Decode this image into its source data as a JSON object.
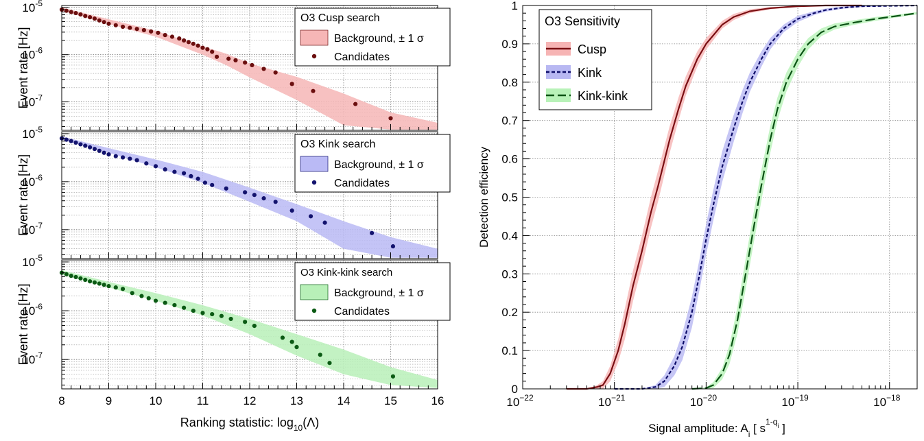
{
  "chart_data": [
    {
      "type": "scatter",
      "title": "O3 Cusp search",
      "xlabel": "",
      "ylabel": "Event rate [Hz]",
      "xlim": [
        8,
        16
      ],
      "ylim": [
        2.5e-08,
        1.1e-05
      ],
      "yscale": "log",
      "y_ticks": [
        "10",
        "10",
        "10"
      ],
      "y_tick_exponents": [
        "-5",
        "-6",
        "-7"
      ],
      "legend": {
        "placement": "top-right",
        "entries": [
          "Background, ± 1 σ",
          "Candidates"
        ]
      },
      "colors": {
        "points": "#6b0f0f",
        "band": "#f6b6b6"
      },
      "band": {
        "x": [
          8,
          9,
          10,
          11,
          11.5,
          12,
          13,
          14,
          15,
          16
        ],
        "low": [
          8.5e-06,
          4.5e-06,
          2.4e-06,
          1e-06,
          6e-07,
          3.3e-07,
          1.1e-07,
          3.2e-08,
          2.6e-08,
          2.6e-08
        ],
        "high": [
          1e-05,
          5.6e-06,
          3.2e-06,
          1.5e-06,
          1.05e-06,
          6.5e-07,
          3.4e-07,
          1.5e-07,
          6e-08,
          3.6e-08
        ]
      },
      "series": [
        {
          "name": "Candidates",
          "x": [
            8.0,
            8.1,
            8.2,
            8.3,
            8.4,
            8.5,
            8.6,
            8.7,
            8.8,
            8.9,
            9.0,
            9.15,
            9.3,
            9.45,
            9.6,
            9.75,
            9.9,
            10.05,
            10.2,
            10.35,
            10.5,
            10.6,
            10.7,
            10.8,
            10.9,
            11.0,
            11.1,
            11.2,
            11.3,
            11.55,
            11.7,
            11.9,
            12.05,
            12.3,
            12.55,
            12.9,
            13.35,
            14.25,
            15.0
          ],
          "y": [
            9e-06,
            8.5e-06,
            8e-06,
            7.6e-06,
            7.1e-06,
            6.6e-06,
            6.2e-06,
            5.8e-06,
            5.3e-06,
            4.9e-06,
            4.5e-06,
            4.2e-06,
            3.9e-06,
            3.7e-06,
            3.5e-06,
            3.3e-06,
            3.1e-06,
            2.9e-06,
            2.6e-06,
            2.4e-06,
            2.2e-06,
            2e-06,
            1.85e-06,
            1.7e-06,
            1.55e-06,
            1.4e-06,
            1.3e-06,
            1.15e-06,
            9e-07,
            8.2e-07,
            7.6e-07,
            6.8e-07,
            6e-07,
            5e-07,
            4.2e-07,
            2.4e-07,
            1.7e-07,
            9e-08,
            4.5e-08
          ]
        }
      ]
    },
    {
      "type": "scatter",
      "title": "O3 Kink search",
      "xlabel": "",
      "ylabel": "Event rate [Hz]",
      "xlim": [
        8,
        16
      ],
      "ylim": [
        2.5e-08,
        1.1e-05
      ],
      "yscale": "log",
      "y_ticks": [
        "10",
        "10",
        "10"
      ],
      "y_tick_exponents": [
        "-5",
        "-6",
        "-7"
      ],
      "legend": {
        "placement": "top-right",
        "entries": [
          "Background, ± 1 σ",
          "Candidates"
        ]
      },
      "colors": {
        "points": "#13136e",
        "band": "#babaf5"
      },
      "band": {
        "x": [
          8,
          9,
          10,
          11,
          12,
          13,
          14,
          15,
          16
        ],
        "low": [
          7.5e-06,
          4e-06,
          2e-06,
          9.5e-07,
          3.8e-07,
          1.5e-07,
          4e-08,
          2.6e-08,
          2.6e-08
        ],
        "high": [
          8.8e-06,
          5e-06,
          2.9e-06,
          1.6e-06,
          7.5e-07,
          3.4e-07,
          1.5e-07,
          7e-08,
          4e-08
        ]
      },
      "series": [
        {
          "name": "Candidates",
          "x": [
            8.0,
            8.1,
            8.2,
            8.3,
            8.4,
            8.5,
            8.6,
            8.7,
            8.8,
            8.9,
            9.0,
            9.15,
            9.3,
            9.45,
            9.6,
            9.8,
            10.0,
            10.2,
            10.4,
            10.6,
            10.75,
            10.9,
            11.05,
            11.2,
            11.5,
            11.9,
            12.1,
            12.3,
            12.55,
            12.9,
            13.3,
            13.6,
            14.6,
            15.05
          ],
          "y": [
            8e-06,
            7.5e-06,
            7e-06,
            6.5e-06,
            6e-06,
            5.6e-06,
            5.2e-06,
            4.8e-06,
            4.4e-06,
            4e-06,
            3.7e-06,
            3.4e-06,
            3.2e-06,
            3e-06,
            2.8e-06,
            2.4e-06,
            2.1e-06,
            1.8e-06,
            1.6e-06,
            1.5e-06,
            1.3e-06,
            1.15e-06,
            9.5e-07,
            8.5e-07,
            7.2e-07,
            6e-07,
            5.3e-07,
            4.5e-07,
            3.8e-07,
            2.5e-07,
            1.9e-07,
            1.4e-07,
            8.5e-08,
            4.5e-08
          ]
        }
      ]
    },
    {
      "type": "scatter",
      "title": "O3 Kink-kink search",
      "xlabel": "Ranking statistic: log",
      "xlabel_subscript": "10",
      "xlabel_suffix": "(Λ)",
      "ylabel": "Event rate [Hz]",
      "xlim": [
        8,
        16
      ],
      "ylim": [
        2.5e-08,
        1.1e-05
      ],
      "yscale": "log",
      "x_ticks": [
        "8",
        "9",
        "10",
        "11",
        "12",
        "13",
        "14",
        "15",
        "16"
      ],
      "y_ticks": [
        "10",
        "10",
        "10"
      ],
      "y_tick_exponents": [
        "-5",
        "-6",
        "-7"
      ],
      "legend": {
        "placement": "top-right",
        "entries": [
          "Background, ± 1 σ",
          "Candidates"
        ]
      },
      "colors": {
        "points": "#0b5a14",
        "band": "#b8f0b8"
      },
      "band": {
        "x": [
          8,
          9,
          10,
          11,
          12,
          13,
          14,
          15,
          16
        ],
        "low": [
          5.5e-06,
          3e-06,
          1.6e-06,
          8e-07,
          3.3e-07,
          1.2e-07,
          5e-08,
          3e-08,
          2.6e-08
        ],
        "high": [
          6.8e-06,
          3.9e-06,
          2.3e-06,
          1.3e-06,
          6.8e-07,
          3.3e-07,
          1.6e-07,
          7e-08,
          3.8e-08
        ]
      },
      "series": [
        {
          "name": "Candidates",
          "x": [
            8.0,
            8.1,
            8.2,
            8.3,
            8.4,
            8.5,
            8.6,
            8.7,
            8.8,
            8.9,
            9.0,
            9.15,
            9.3,
            9.5,
            9.7,
            9.85,
            10.0,
            10.2,
            10.4,
            10.6,
            10.8,
            11.0,
            11.2,
            11.4,
            11.6,
            11.9,
            12.1,
            12.7,
            12.9,
            13.0,
            13.5,
            13.7,
            15.05
          ],
          "y": [
            6e-06,
            5.6e-06,
            5.2e-06,
            4.9e-06,
            4.6e-06,
            4.3e-06,
            4e-06,
            3.8e-06,
            3.6e-06,
            3.4e-06,
            3.2e-06,
            3e-06,
            2.8e-06,
            2.3e-06,
            2e-06,
            1.8e-06,
            1.6e-06,
            1.45e-06,
            1.3e-06,
            1.15e-06,
            1e-06,
            9e-07,
            8.5e-07,
            7.8e-07,
            6.8e-07,
            5.9e-07,
            4.9e-07,
            2.8e-07,
            2.3e-07,
            1.8e-07,
            1.25e-07,
            8.5e-08,
            4.5e-08
          ]
        }
      ]
    },
    {
      "type": "line",
      "title": "",
      "xlabel": "Signal amplitude: A",
      "xlabel_subscript": "i",
      "xlabel_suffix": " [ s",
      "xlabel_superscript": "1-q",
      "xlabel_superscript_sub": "i",
      "xlabel_end": " ]",
      "ylabel": "Detection efficiency",
      "xscale": "log",
      "xlim": [
        1e-22,
        2e-18
      ],
      "ylim": [
        0,
        1
      ],
      "grid": true,
      "x_ticks": [
        "10",
        "10",
        "10",
        "10",
        "10"
      ],
      "x_tick_exponents": [
        "−22",
        "−21",
        "−20",
        "−19",
        "−18"
      ],
      "y_ticks": [
        "0",
        "0.1",
        "0.2",
        "0.3",
        "0.4",
        "0.5",
        "0.6",
        "0.7",
        "0.8",
        "0.9",
        "1"
      ],
      "legend": {
        "title": "O3 Sensitivity",
        "placement": "top-left"
      },
      "series": [
        {
          "name": "Cusp",
          "style": "solid",
          "color": "#7a0e12",
          "band_color": "#f6b4b4",
          "x": [
            3e-22,
            5e-22,
            6.5e-22,
            7.5e-22,
            9e-22,
            1.1e-21,
            1.3e-21,
            1.6e-21,
            2e-21,
            2.5e-21,
            3e-21,
            4e-21,
            5e-21,
            6e-21,
            8e-21,
            1e-20,
            1.5e-20,
            2e-20,
            3e-20,
            5e-20,
            1e-19,
            2e-19,
            5e-19
          ],
          "y": [
            0,
            0,
            0.005,
            0.01,
            0.04,
            0.1,
            0.17,
            0.27,
            0.36,
            0.46,
            0.53,
            0.65,
            0.73,
            0.79,
            0.86,
            0.9,
            0.95,
            0.97,
            0.985,
            0.993,
            0.998,
            1.0,
            1.0
          ],
          "band_halfwidth": [
            0,
            0,
            0.005,
            0.01,
            0.02,
            0.03,
            0.04,
            0.04,
            0.04,
            0.04,
            0.04,
            0.035,
            0.03,
            0.025,
            0.02,
            0.015,
            0.01,
            0.008,
            0.005,
            0.003,
            0.001,
            0,
            0
          ]
        },
        {
          "name": "Kink",
          "style": "dashed",
          "color": "#0c0c68",
          "band_color": "#b8b8f2",
          "x": [
            1e-21,
            2e-21,
            2.8e-21,
            3.5e-21,
            4.5e-21,
            5.5e-21,
            7e-21,
            8.5e-21,
            1e-20,
            1.2e-20,
            1.5e-20,
            2e-20,
            2.5e-20,
            3e-20,
            4e-20,
            5e-20,
            7e-20,
            1e-19,
            1.5e-19,
            2e-19,
            3e-19,
            5e-19,
            2e-18
          ],
          "y": [
            0,
            0,
            0.005,
            0.02,
            0.06,
            0.11,
            0.2,
            0.3,
            0.39,
            0.48,
            0.58,
            0.68,
            0.75,
            0.8,
            0.86,
            0.9,
            0.94,
            0.965,
            0.98,
            0.988,
            0.994,
            0.998,
            1.0
          ],
          "band_halfwidth": [
            0,
            0,
            0.005,
            0.015,
            0.025,
            0.035,
            0.04,
            0.04,
            0.04,
            0.04,
            0.04,
            0.035,
            0.03,
            0.025,
            0.02,
            0.015,
            0.01,
            0.008,
            0.005,
            0.004,
            0.003,
            0.002,
            0
          ]
        },
        {
          "name": "Kink-kink",
          "style": "long-dashed",
          "color": "#0a5214",
          "band_color": "#b8f2b8",
          "x": [
            7e-21,
            1e-20,
            1.2e-20,
            1.5e-20,
            1.8e-20,
            2.2e-20,
            2.7e-20,
            3.3e-20,
            4e-20,
            5e-20,
            6e-20,
            7.5e-20,
            1e-19,
            1.3e-19,
            1.8e-19,
            2.5e-19,
            4e-19,
            7e-19,
            1e-18,
            2e-18
          ],
          "y": [
            0,
            0.002,
            0.01,
            0.04,
            0.09,
            0.18,
            0.3,
            0.42,
            0.53,
            0.65,
            0.73,
            0.8,
            0.86,
            0.9,
            0.93,
            0.945,
            0.955,
            0.965,
            0.97,
            0.98
          ],
          "band_halfwidth": [
            0,
            0.002,
            0.008,
            0.015,
            0.025,
            0.035,
            0.04,
            0.04,
            0.04,
            0.035,
            0.03,
            0.025,
            0.02,
            0.015,
            0.01,
            0.008,
            0.006,
            0.005,
            0.004,
            0.003
          ]
        }
      ]
    }
  ]
}
